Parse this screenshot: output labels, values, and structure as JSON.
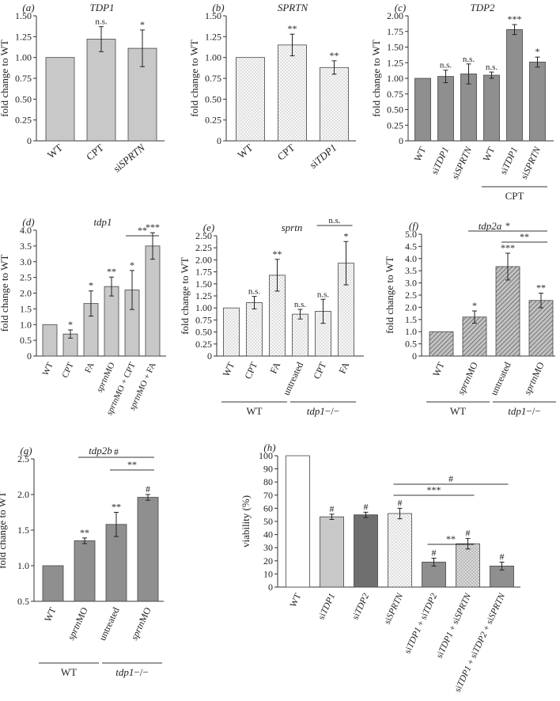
{
  "figure_title": "",
  "chart_data": [
    {
      "id": "a",
      "type": "bar",
      "panel_label": "(a)",
      "title": "TDP1",
      "ylabel": "fold change to WT",
      "ylim": [
        0,
        1.5
      ],
      "yticks": [
        "0",
        "0.25",
        "0.50",
        "0.75",
        "1.00",
        "1.25",
        "1.50"
      ],
      "categories": [
        "WT",
        "CPT",
        "siSPRTN"
      ],
      "values": [
        1.0,
        1.22,
        1.11
      ],
      "errors": [
        0,
        0.15,
        0.22
      ],
      "annotations": [
        "",
        "n.s.",
        "*"
      ],
      "colors": [
        "#c8c8c8"
      ],
      "groups": []
    },
    {
      "id": "b",
      "type": "bar",
      "panel_label": "(b)",
      "title": "SPRTN",
      "ylabel": "fold change to WT",
      "ylim": [
        0,
        1.5
      ],
      "yticks": [
        "0",
        "0.25",
        "0.50",
        "0.75",
        "1.00",
        "1.25",
        "1.50"
      ],
      "categories": [
        "WT",
        "CPT",
        "siTDP1"
      ],
      "values": [
        1.0,
        1.15,
        0.88
      ],
      "errors": [
        0,
        0.13,
        0.08
      ],
      "annotations": [
        "",
        "**",
        "**"
      ],
      "colors": [
        "#ececec"
      ],
      "groups": []
    },
    {
      "id": "c",
      "type": "bar",
      "panel_label": "(c)",
      "title": "TDP2",
      "ylabel": "fold change to WT",
      "ylim": [
        0,
        2.0
      ],
      "yticks": [
        "0",
        "0.25",
        "0.50",
        "0.75",
        "1.00",
        "1.25",
        "1.50",
        "1.75",
        "2.00"
      ],
      "categories": [
        "WT",
        "siTDP1",
        "siSPRTN",
        "WT",
        "siTDP1",
        "siSPRTN"
      ],
      "values": [
        1.0,
        1.03,
        1.07,
        1.05,
        1.78,
        1.26
      ],
      "errors": [
        0,
        0.1,
        0.16,
        0.05,
        0.08,
        0.08
      ],
      "annotations": [
        "",
        "n.s.",
        "n.s.",
        "n.s.",
        "***",
        "*"
      ],
      "colors": [
        "#8f8f8f"
      ],
      "groups": [
        {
          "label": "CPT",
          "from": 3,
          "to": 5
        }
      ]
    },
    {
      "id": "d",
      "type": "bar",
      "panel_label": "(d)",
      "title": "tdp1",
      "ylabel": "fold change to WT",
      "ylim": [
        0,
        4.0
      ],
      "yticks": [
        "0",
        "0.5",
        "1.0",
        "1.5",
        "2.0",
        "2.5",
        "3.0",
        "3.5",
        "4.0"
      ],
      "categories": [
        "WT",
        "CPT",
        "FA",
        "sprtnMO",
        "sprtnMO + CPT",
        "sprtnMO + FA"
      ],
      "values": [
        1.0,
        0.7,
        1.67,
        2.21,
        2.1,
        3.5
      ],
      "errors": [
        0,
        0.13,
        0.4,
        0.3,
        0.62,
        0.42
      ],
      "annotations": [
        "",
        "*",
        "*",
        "**",
        "*",
        "***"
      ],
      "colors": [
        "#c8c8c8"
      ],
      "brackets": [
        {
          "from": 4,
          "to": 5,
          "label": "**"
        }
      ],
      "groups": []
    },
    {
      "id": "e",
      "type": "bar",
      "panel_label": "(e)",
      "title": "sprtn",
      "ylabel": "fold change to WT",
      "ylim": [
        0,
        2.5
      ],
      "yticks": [
        "0",
        "0.25",
        "0.50",
        "0.75",
        "1.00",
        "1.25",
        "1.50",
        "1.75",
        "2.00",
        "2.25",
        "2.50"
      ],
      "categories": [
        "WT",
        "CPT",
        "FA",
        "untreated",
        "CPT",
        "FA"
      ],
      "values": [
        1.0,
        1.11,
        1.68,
        0.87,
        0.93,
        1.93
      ],
      "errors": [
        0,
        0.13,
        0.33,
        0.1,
        0.25,
        0.45
      ],
      "annotations": [
        "",
        "n.s.",
        "**",
        "n.s.",
        "n.s.",
        "*"
      ],
      "colors": [
        "#ececec"
      ],
      "brackets": [
        {
          "from": 4,
          "to": 5,
          "label": "n.s."
        }
      ],
      "groups": [
        {
          "label": "WT",
          "from": 0,
          "to": 2
        },
        {
          "label": "tdp1−/−",
          "from": 3,
          "to": 5
        }
      ]
    },
    {
      "id": "f",
      "type": "bar",
      "panel_label": "(f)",
      "title": "tdp2a",
      "ylabel": "fold change to WT",
      "ylim": [
        0,
        5.0
      ],
      "yticks": [
        "0",
        "0.5",
        "1.0",
        "1.5",
        "2.0",
        "2.5",
        "3.0",
        "3.5",
        "4.0",
        "4.5",
        "5.0"
      ],
      "categories": [
        "WT",
        "sprtnMO",
        "untreated",
        "sprtnMO"
      ],
      "values": [
        1.0,
        1.6,
        3.67,
        2.28
      ],
      "errors": [
        0,
        0.25,
        0.55,
        0.3
      ],
      "annotations": [
        "",
        "*",
        "***",
        "**"
      ],
      "colors": [
        "#b4b4b4"
      ],
      "brackets": [
        {
          "from": 1,
          "to": 3,
          "label": "*"
        },
        {
          "from": 2,
          "to": 3,
          "label": "**"
        }
      ],
      "groups": [
        {
          "label": "WT",
          "from": 0,
          "to": 1
        },
        {
          "label": "tdp1−/−",
          "from": 2,
          "to": 3
        }
      ]
    },
    {
      "id": "g",
      "type": "bar",
      "panel_label": "(g)",
      "title": "tdp2b",
      "ylabel": "fold change to WT",
      "ylim": [
        0.5,
        2.5
      ],
      "yticks": [
        "0.5",
        "1.0",
        "1.5",
        "2.0",
        "2.5"
      ],
      "categories": [
        "WT",
        "sprtnMO",
        "untreated",
        "sprtnMO"
      ],
      "values": [
        1.0,
        1.35,
        1.58,
        1.96
      ],
      "errors": [
        0,
        0.04,
        0.17,
        0.04
      ],
      "annotations": [
        "",
        "**",
        "**",
        "#"
      ],
      "colors": [
        "#8f8f8f"
      ],
      "brackets": [
        {
          "from": 1,
          "to": 3,
          "label": "#"
        },
        {
          "from": 2,
          "to": 3,
          "label": "**"
        }
      ],
      "groups": [
        {
          "label": "WT",
          "from": 0,
          "to": 1
        },
        {
          "label": "tdp1−/−",
          "from": 2,
          "to": 3
        }
      ]
    },
    {
      "id": "h",
      "type": "bar",
      "panel_label": "(h)",
      "title": "",
      "ylabel": "viability (%)",
      "ylim": [
        0,
        100
      ],
      "yticks": [
        "0",
        "10",
        "20",
        "30",
        "40",
        "50",
        "60",
        "70",
        "80",
        "90",
        "100"
      ],
      "categories": [
        "WT",
        "siTDP1",
        "siTDP2",
        "siSPRTN",
        "siTDP1 + siTDP2",
        "siTDP1 + siSPRTN",
        "siTDP1 + siTDP2 + siSPRTN"
      ],
      "values": [
        100,
        53.5,
        55,
        56,
        19,
        33,
        16
      ],
      "errors": [
        0,
        2,
        2,
        4,
        3,
        4,
        3
      ],
      "annotations": [
        "",
        "#",
        "#",
        "#",
        "#",
        "#",
        "#"
      ],
      "colors": [
        "#ffffff",
        "#c8c8c8",
        "#6f6f6f",
        "#f2f2f2",
        "#8f8f8f",
        "#cfcfcf",
        "#8f8f8f"
      ],
      "brackets": [
        {
          "from": 3,
          "to": 6,
          "label": "#"
        },
        {
          "from": 3,
          "to": 5,
          "label": "***"
        },
        {
          "from": 4,
          "to": 5,
          "label": "**"
        }
      ],
      "groups": []
    }
  ]
}
